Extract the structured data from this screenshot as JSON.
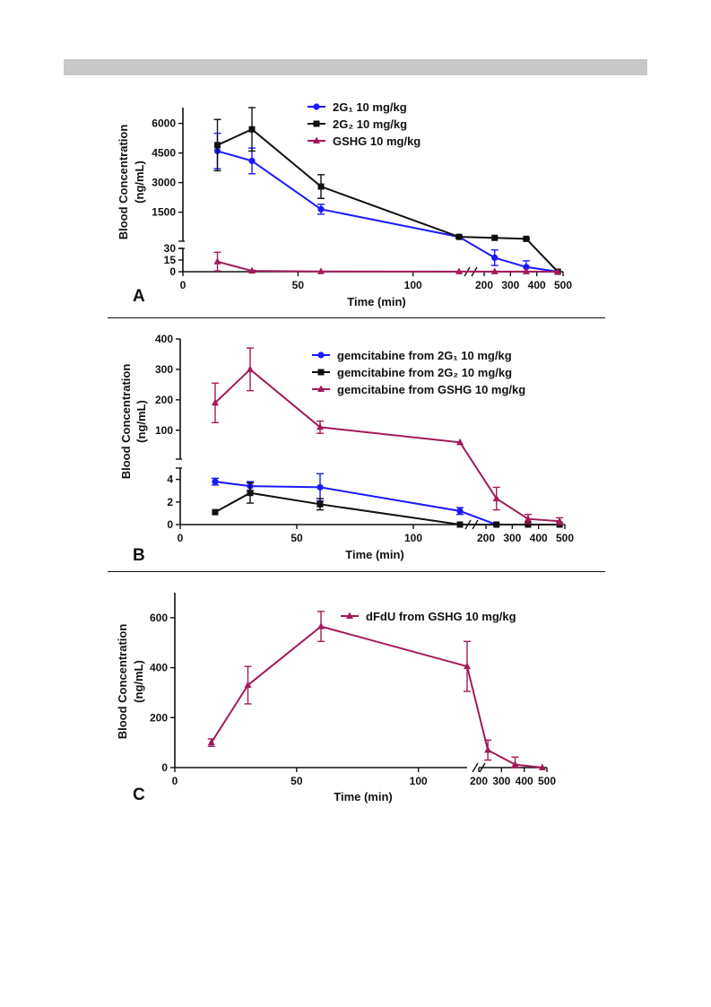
{
  "page": {},
  "chart_data": [
    {
      "type": "line",
      "panel_label": "A",
      "xlabel": "Time (min)",
      "ylabel": "Blood Concentration (ng/mL)",
      "ylabel_lines": [
        "Blood Concentration",
        "(ng/mL)"
      ],
      "x_axis_broken": true,
      "x_segments": [
        {
          "range": [
            0,
            120
          ],
          "ticks": [
            0,
            50,
            100
          ],
          "tick_labels": [
            "0",
            "50",
            "100"
          ]
        },
        {
          "range": [
            200,
            500
          ],
          "ticks": [
            200,
            300,
            400,
            500
          ],
          "tick_labels": [
            "200",
            "300",
            "400",
            "500"
          ]
        }
      ],
      "y_axis_broken": true,
      "y_segments": [
        {
          "range": [
            0,
            30
          ],
          "ticks": [
            0,
            15,
            30
          ],
          "tick_labels": [
            "0",
            "15",
            "30"
          ]
        },
        {
          "range": [
            30,
            6800
          ],
          "ticks": [
            1500,
            3000,
            4500,
            6000
          ],
          "tick_labels": [
            "1500",
            "3000",
            "4500",
            "6000"
          ]
        }
      ],
      "legend_position": "top-right",
      "series": [
        {
          "name": "2G₁ 10 mg/kg",
          "color": "#1a1aff",
          "marker": "circle",
          "x": [
            15,
            30,
            60,
            120,
            240,
            360,
            480
          ],
          "y": [
            4600,
            4100,
            1650,
            250,
            18,
            6,
            0
          ],
          "err": [
            900,
            650,
            250,
            60,
            10,
            8,
            0
          ]
        },
        {
          "name": "2G₂ 10 mg/kg",
          "color": "#111111",
          "marker": "square",
          "x": [
            15,
            30,
            60,
            120,
            240,
            360,
            480
          ],
          "y": [
            4900,
            5700,
            2800,
            250,
            200,
            150,
            0
          ],
          "err": [
            1300,
            1100,
            600,
            40,
            30,
            30,
            0
          ]
        },
        {
          "name": "GSHG 10 mg/kg",
          "color": "#a3195b",
          "marker": "triangle",
          "x": [
            15,
            30,
            60,
            120,
            240,
            360,
            480
          ],
          "y": [
            13,
            1,
            0.3,
            0.2,
            0.1,
            0.1,
            0
          ],
          "err": [
            12,
            1,
            0,
            0,
            0,
            0,
            0
          ]
        }
      ]
    },
    {
      "type": "line",
      "panel_label": "B",
      "xlabel": "Time (min)",
      "ylabel": "Blood Concentration (ng/mL)",
      "ylabel_lines": [
        "Blood Concentration",
        "(ng/mL)"
      ],
      "x_axis_broken": true,
      "x_segments": [
        {
          "range": [
            0,
            120
          ],
          "ticks": [
            0,
            50,
            100
          ],
          "tick_labels": [
            "0",
            "50",
            "100"
          ]
        },
        {
          "range": [
            200,
            500
          ],
          "ticks": [
            200,
            300,
            400,
            500
          ],
          "tick_labels": [
            "200",
            "300",
            "400",
            "500"
          ]
        }
      ],
      "y_axis_broken": true,
      "y_segments": [
        {
          "range": [
            0,
            5
          ],
          "ticks": [
            0,
            2,
            4
          ],
          "tick_labels": [
            "0",
            "2",
            "4"
          ]
        },
        {
          "range": [
            5,
            400
          ],
          "ticks": [
            100,
            200,
            300,
            400
          ],
          "tick_labels": [
            "100",
            "200",
            "300",
            "400"
          ]
        }
      ],
      "legend_position": "top-right",
      "series": [
        {
          "name": "gemcitabine from 2G₁ 10 mg/kg",
          "color": "#1a1aff",
          "marker": "circle",
          "x": [
            15,
            30,
            60,
            120,
            240
          ],
          "y": [
            3.8,
            3.4,
            3.3,
            1.2,
            0
          ],
          "err": [
            0.3,
            0.4,
            1.2,
            0.3,
            0
          ]
        },
        {
          "name": "gemcitabine from 2G₂ 10 mg/kg",
          "color": "#111111",
          "marker": "square",
          "x": [
            15,
            30,
            60,
            120,
            240,
            360,
            480
          ],
          "y": [
            1.1,
            2.8,
            1.8,
            0,
            0,
            0,
            0
          ],
          "err": [
            0,
            0.9,
            0.5,
            0,
            0,
            0,
            0
          ]
        },
        {
          "name": "gemcitabine from GSHG 10 mg/kg",
          "color": "#a3195b",
          "marker": "triangle",
          "x": [
            15,
            30,
            60,
            120,
            240,
            360,
            480
          ],
          "y": [
            190,
            300,
            110,
            60,
            2.3,
            0.5,
            0.3
          ],
          "err": [
            65,
            70,
            20,
            0,
            1.0,
            0.4,
            0.3
          ]
        }
      ]
    },
    {
      "type": "line",
      "panel_label": "C",
      "xlabel": "Time (min)",
      "ylabel": "Blood Concentration (ng/mL)",
      "ylabel_lines": [
        "Blood Concentration",
        "(ng/mL)"
      ],
      "x_axis_broken": true,
      "x_segments": [
        {
          "range": [
            0,
            120
          ],
          "ticks": [
            0,
            50,
            100
          ],
          "tick_labels": [
            "0",
            "50",
            "100"
          ]
        },
        {
          "range": [
            200,
            500
          ],
          "ticks": [
            200,
            300,
            400,
            500
          ],
          "tick_labels": [
            "200",
            "300",
            "400",
            "500"
          ]
        }
      ],
      "y_axis_broken": false,
      "y_segments": [
        {
          "range": [
            0,
            700
          ],
          "ticks": [
            0,
            200,
            400,
            600
          ],
          "tick_labels": [
            "0",
            "200",
            "400",
            "600"
          ]
        }
      ],
      "legend_position": "top-right",
      "series": [
        {
          "name": "dFdU from GSHG 10 mg/kg",
          "color": "#a3195b",
          "marker": "triangle",
          "x": [
            15,
            30,
            60,
            120,
            240,
            360,
            480
          ],
          "y": [
            100,
            330,
            565,
            405,
            70,
            12,
            0
          ],
          "err": [
            15,
            75,
            60,
            100,
            40,
            30,
            0
          ]
        }
      ]
    }
  ]
}
